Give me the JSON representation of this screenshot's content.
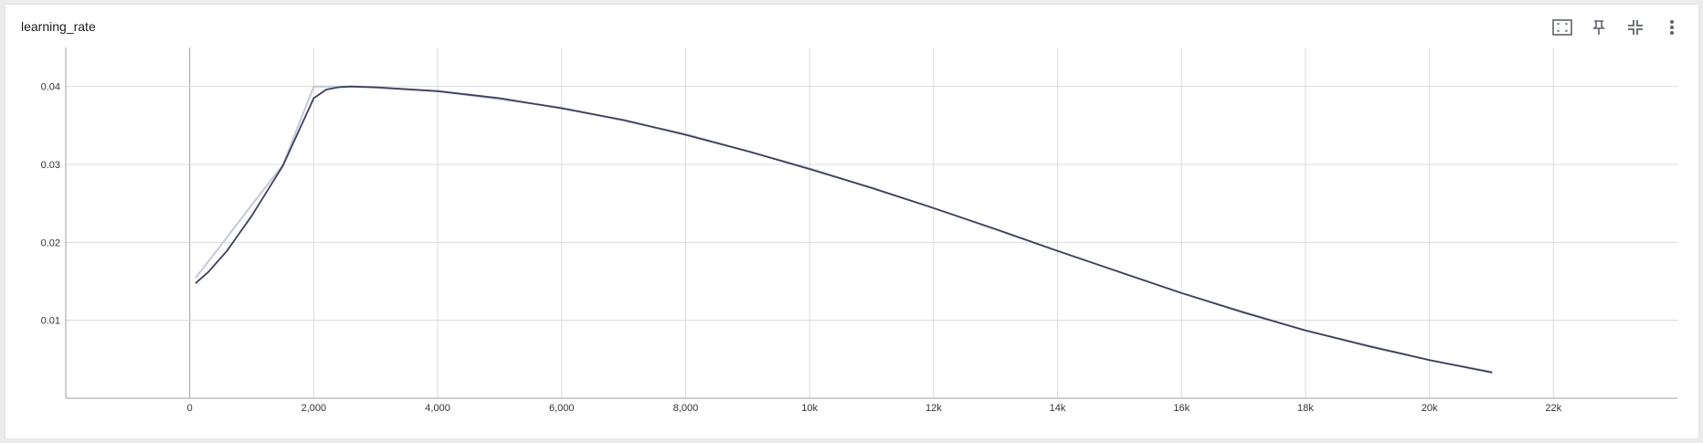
{
  "card": {
    "title": "learning_rate"
  },
  "toolbar": {
    "icons": [
      "fit-domain-icon",
      "pin-icon",
      "collapse-icon",
      "more-vert-icon"
    ]
  },
  "colors": {
    "line_main": "#3c3f5c",
    "line_shadow": "#c5c8d6",
    "grid": "#dcdcdc",
    "axis": "#9e9e9e",
    "zero_line": "#9e9e9e",
    "icon": "#5f6368"
  },
  "chart_data": {
    "type": "line",
    "title": "learning_rate",
    "xlabel": "",
    "ylabel": "",
    "xlim": [
      -2000,
      24000
    ],
    "ylim": [
      0,
      0.045
    ],
    "grid": true,
    "x_ticks": [
      {
        "value": 0,
        "label": "0"
      },
      {
        "value": 2000,
        "label": "2,000"
      },
      {
        "value": 4000,
        "label": "4,000"
      },
      {
        "value": 6000,
        "label": "6,000"
      },
      {
        "value": 8000,
        "label": "8,000"
      },
      {
        "value": 10000,
        "label": "10k"
      },
      {
        "value": 12000,
        "label": "12k"
      },
      {
        "value": 14000,
        "label": "14k"
      },
      {
        "value": 16000,
        "label": "16k"
      },
      {
        "value": 18000,
        "label": "18k"
      },
      {
        "value": 20000,
        "label": "20k"
      },
      {
        "value": 22000,
        "label": "22k"
      }
    ],
    "y_ticks": [
      {
        "value": 0.01,
        "label": "0.01"
      },
      {
        "value": 0.02,
        "label": "0.02"
      },
      {
        "value": 0.03,
        "label": "0.03"
      },
      {
        "value": 0.04,
        "label": "0.04"
      }
    ],
    "series": [
      {
        "role": "raw",
        "x": [
          100,
          500,
          1000,
          1500,
          2000,
          2200,
          2600,
          4000,
          6000,
          8000,
          10000,
          12000,
          14000,
          16000,
          18000,
          20000,
          21000
        ],
        "y": [
          0.0155,
          0.0196,
          0.0248,
          0.0299,
          0.04,
          0.04,
          0.04,
          0.0394,
          0.0373,
          0.0339,
          0.0295,
          0.0244,
          0.0189,
          0.0135,
          0.0087,
          0.0049,
          0.0034
        ]
      },
      {
        "role": "smoothed",
        "x": [
          100,
          300,
          600,
          1000,
          1500,
          2000,
          2200,
          2400,
          2600,
          3000,
          4000,
          5000,
          6000,
          7000,
          8000,
          9000,
          10000,
          11000,
          12000,
          13000,
          14000,
          15000,
          16000,
          17000,
          18000,
          19000,
          20000,
          21000
        ],
        "y": [
          0.0148,
          0.0162,
          0.0189,
          0.0234,
          0.0298,
          0.0385,
          0.0396,
          0.0399,
          0.04,
          0.0399,
          0.0394,
          0.0385,
          0.0372,
          0.0357,
          0.0338,
          0.0317,
          0.0294,
          0.027,
          0.0244,
          0.0217,
          0.0189,
          0.0162,
          0.0135,
          0.011,
          0.0087,
          0.0067,
          0.0049,
          0.0033
        ]
      }
    ]
  }
}
